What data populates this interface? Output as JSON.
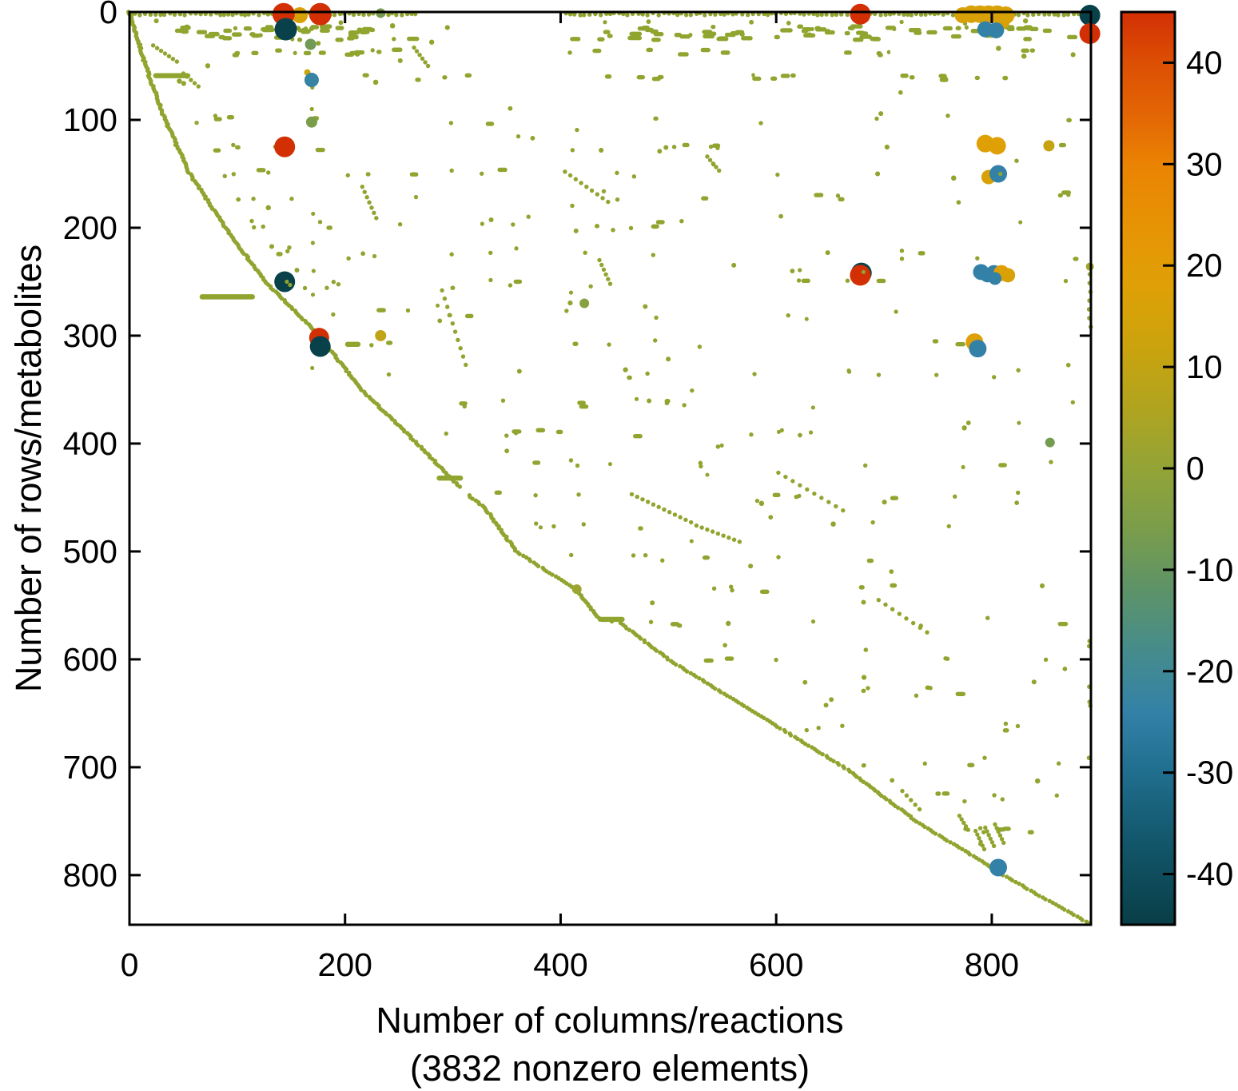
{
  "chart_data": {
    "type": "scatter",
    "subtype": "sparse-matrix-spy-plot",
    "xlabel_line1": "Number of columns/reactions",
    "xlabel_line2": "(3832 nonzero elements)",
    "ylabel": "Number of rows/metabolites",
    "nonzero_elements": 3832,
    "xlim": [
      0,
      892
    ],
    "ylim": [
      0,
      846
    ],
    "y_axis_reversed": true,
    "x_ticks": [
      0,
      200,
      400,
      600,
      800
    ],
    "y_ticks": [
      0,
      100,
      200,
      300,
      400,
      500,
      600,
      700,
      800
    ],
    "grid": false,
    "marker_default_color": "#90A52F",
    "colorbar": {
      "position": "right",
      "vmin": -45,
      "vmax": 45,
      "ticks": [
        40,
        30,
        20,
        10,
        0,
        -10,
        -20,
        -30,
        -40
      ],
      "stops": [
        [
          45,
          "#D32F05"
        ],
        [
          40,
          "#DC4F04"
        ],
        [
          35,
          "#E36504"
        ],
        [
          30,
          "#EA8303"
        ],
        [
          24,
          "#E79304"
        ],
        [
          18,
          "#DFA006"
        ],
        [
          12,
          "#CBA30D"
        ],
        [
          6,
          "#B0A41F"
        ],
        [
          0,
          "#93A437"
        ],
        [
          -6,
          "#7A9D4B"
        ],
        [
          -12,
          "#5D9368"
        ],
        [
          -18,
          "#468C8C"
        ],
        [
          -24,
          "#3381A7"
        ],
        [
          -30,
          "#206E8E"
        ],
        [
          -36,
          "#14596F"
        ],
        [
          -45,
          "#083E46"
        ]
      ]
    },
    "diagonal_anchors": [
      [
        0,
        0
      ],
      [
        15,
        50
      ],
      [
        33,
        100
      ],
      [
        56,
        150
      ],
      [
        89,
        200
      ],
      [
        126,
        250
      ],
      [
        176,
        300
      ],
      [
        215,
        350
      ],
      [
        267,
        400
      ],
      [
        311,
        445
      ],
      [
        330,
        460
      ],
      [
        359,
        500
      ],
      [
        415,
        536
      ],
      [
        436,
        563
      ],
      [
        455,
        566
      ],
      [
        500,
        600
      ],
      [
        581,
        650
      ],
      [
        663,
        700
      ],
      [
        730,
        750
      ],
      [
        811,
        800
      ],
      [
        892,
        846
      ]
    ],
    "diagonal_gap_rows": [
      441,
      447
    ],
    "dense_rows": {
      "row0_segments": [
        [
          1,
          268
        ],
        [
          405,
          889
        ]
      ],
      "band_rows": [
        13,
        26
      ],
      "band_segments": [
        [
          42,
          265
        ],
        [
          406,
          888
        ]
      ],
      "row37_segments": [
        [
          88,
          295
        ],
        [
          406,
          886
        ]
      ],
      "row60_segments": [
        [
          150,
          340
        ],
        [
          406,
          886
        ]
      ]
    },
    "sparse_row_ys": [
      100,
      127,
      150,
      170,
      197,
      225,
      252,
      280,
      308,
      335,
      362,
      390,
      418,
      447,
      476,
      505,
      535,
      565,
      598,
      630,
      663,
      695,
      728,
      760
    ],
    "hbars": [
      [
        22,
        52,
        59
      ],
      [
        65,
        112,
        264
      ],
      [
        200,
        210,
        308
      ],
      [
        285,
        305,
        432
      ],
      [
        436,
        455,
        563
      ]
    ],
    "slants": [
      [
        22,
        31,
        44,
        46,
        7
      ],
      [
        50,
        57,
        64,
        69,
        5
      ],
      [
        264,
        33,
        277,
        50,
        6
      ],
      [
        216,
        162,
        229,
        191,
        7
      ],
      [
        290,
        258,
        312,
        327,
        10
      ],
      [
        404,
        148,
        444,
        176,
        9
      ],
      [
        436,
        230,
        446,
        252,
        6
      ],
      [
        536,
        134,
        547,
        147,
        5
      ],
      [
        466,
        447,
        521,
        473,
        12
      ],
      [
        526,
        476,
        566,
        491,
        9
      ],
      [
        602,
        427,
        662,
        462,
        10
      ],
      [
        695,
        545,
        740,
        575,
        8
      ],
      [
        717,
        722,
        733,
        739,
        5
      ],
      [
        770,
        745,
        778,
        758,
        5
      ],
      [
        785,
        759,
        793,
        776,
        6
      ],
      [
        794,
        756,
        802,
        773,
        6
      ],
      [
        803,
        753,
        811,
        770,
        6
      ]
    ],
    "column_x169_rows": [
      70,
      90,
      187,
      214,
      240,
      262,
      330
    ],
    "right_edge_column": {
      "x": 890,
      "row_range_a": [
        235,
        300
      ],
      "count_a": 8,
      "row_range_b": [
        560,
        700
      ],
      "count_b": 6
    },
    "random_scatter": {
      "count": 110,
      "seed": 7
    },
    "medium_markers": [
      {
        "x": 168,
        "y": 30,
        "value": -8,
        "r": 7
      },
      {
        "x": 165,
        "y": 56,
        "value": 12,
        "r": 4
      },
      {
        "x": 169,
        "y": 63,
        "value": -23,
        "r": 9
      },
      {
        "x": 169,
        "y": 102,
        "value": -6,
        "r": 7
      },
      {
        "x": 233,
        "y": 1,
        "value": -7,
        "r": 6
      },
      {
        "x": 233,
        "y": 300,
        "value": 9,
        "r": 7
      },
      {
        "x": 422,
        "y": 270,
        "value": -3,
        "r": 6
      },
      {
        "x": 415,
        "y": 535,
        "value": 2,
        "r": 6
      },
      {
        "x": 853,
        "y": 124,
        "value": 11,
        "r": 7
      },
      {
        "x": 854,
        "y": 399,
        "value": -7,
        "r": 6
      },
      {
        "x": 891,
        "y": 236,
        "value": 3,
        "r": 5
      }
    ],
    "large_markers": [
      {
        "x": 891,
        "y": 3,
        "value": -44,
        "r": 13
      },
      {
        "x": 891,
        "y": 20,
        "value": 45,
        "r": 13
      },
      {
        "x": 158,
        "y": 3,
        "value": 16,
        "r": 10
      },
      {
        "x": 143,
        "y": 2,
        "value": 45,
        "r": 14
      },
      {
        "x": 177,
        "y": 2,
        "value": 45,
        "r": 14
      },
      {
        "x": 145,
        "y": 16,
        "value": -44,
        "r": 14
      },
      {
        "x": 144,
        "y": 125,
        "value": 45,
        "r": 13
      },
      {
        "x": 144,
        "y": 250,
        "value": -44,
        "r": 13
      },
      {
        "x": 176,
        "y": 302,
        "value": 45,
        "r": 12.5
      },
      {
        "x": 177,
        "y": 310,
        "value": -44,
        "r": 13
      },
      {
        "x": 678,
        "y": 2,
        "value": 45,
        "r": 13
      },
      {
        "x": 679,
        "y": 242,
        "value": -44,
        "r": 13
      },
      {
        "x": 678,
        "y": 244,
        "value": 45,
        "r": 13
      },
      {
        "x": 773,
        "y": 3,
        "value": 16,
        "r": 10
      },
      {
        "x": 781,
        "y": 2,
        "value": 16,
        "r": 11
      },
      {
        "x": 789,
        "y": 2,
        "value": 16,
        "r": 11
      },
      {
        "x": 797,
        "y": 2,
        "value": 16,
        "r": 11
      },
      {
        "x": 805,
        "y": 2,
        "value": 16,
        "r": 11
      },
      {
        "x": 813,
        "y": 3,
        "value": 16,
        "r": 11
      },
      {
        "x": 810,
        "y": 9,
        "value": 16,
        "r": 9
      },
      {
        "x": 794,
        "y": 16,
        "value": -24,
        "r": 10
      },
      {
        "x": 804,
        "y": 17,
        "value": -24,
        "r": 10
      },
      {
        "x": 794,
        "y": 122,
        "value": 18,
        "r": 11
      },
      {
        "x": 805,
        "y": 124,
        "value": 18,
        "r": 11
      },
      {
        "x": 797,
        "y": 153,
        "value": 16,
        "r": 9
      },
      {
        "x": 806,
        "y": 150,
        "value": -24,
        "r": 11
      },
      {
        "x": 790,
        "y": 241,
        "value": -24,
        "r": 10
      },
      {
        "x": 796,
        "y": 244,
        "value": -24,
        "r": 9
      },
      {
        "x": 802,
        "y": 242,
        "value": -24,
        "r": 10
      },
      {
        "x": 809,
        "y": 242,
        "value": 18,
        "r": 10
      },
      {
        "x": 815,
        "y": 244,
        "value": 16,
        "r": 9
      },
      {
        "x": 803,
        "y": 247,
        "value": -24,
        "r": 8
      },
      {
        "x": 784,
        "y": 306,
        "value": 18,
        "r": 11
      },
      {
        "x": 787,
        "y": 312,
        "value": -24,
        "r": 11
      },
      {
        "x": 806,
        "y": 793,
        "value": -24,
        "r": 11
      }
    ],
    "overlay_dots": [
      [
        146,
        250
      ],
      [
        149,
        253
      ],
      [
        808,
        150
      ],
      [
        681,
        241
      ]
    ]
  },
  "layout_text": {
    "tick_font_note": "black Helvetica-like ticks"
  }
}
